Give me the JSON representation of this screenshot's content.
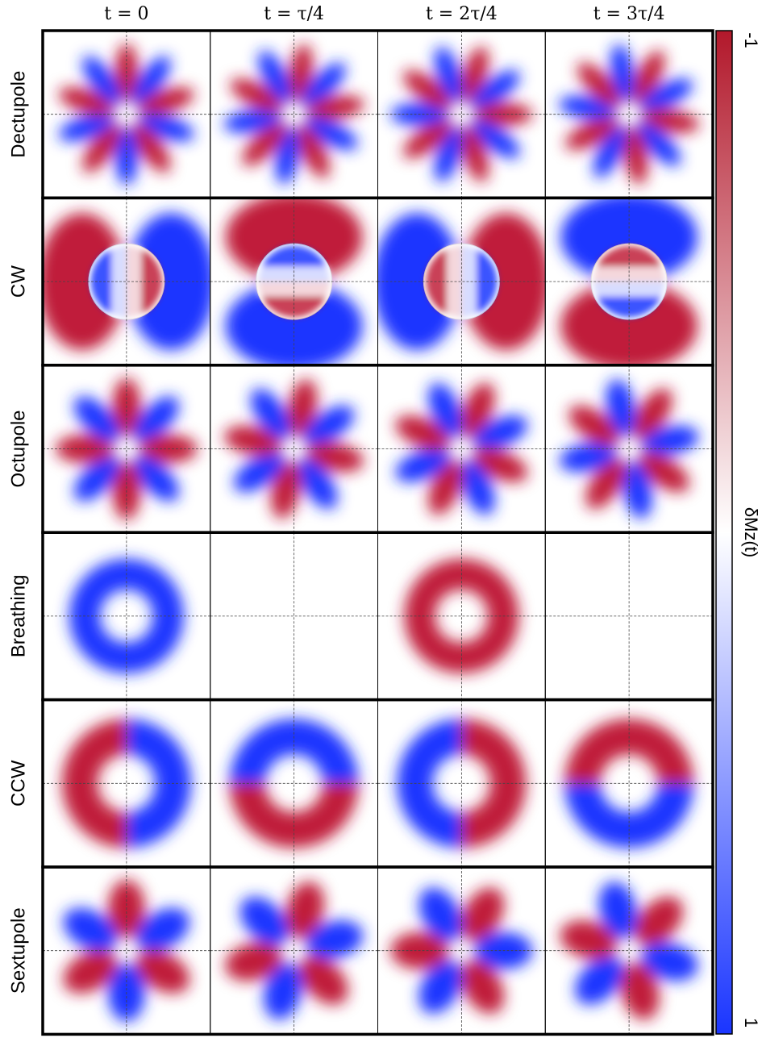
{
  "columns": [
    "t = 0",
    "t = τ/4",
    "t = 2τ/4",
    "t = 3τ/4"
  ],
  "rows": [
    "Dectupole",
    "CW",
    "Octupole",
    "Breathing",
    "CCW",
    "Sextupole"
  ],
  "colorbar": {
    "label": "δMz(t)",
    "min_label": "-1",
    "max_label": "1"
  }
}
